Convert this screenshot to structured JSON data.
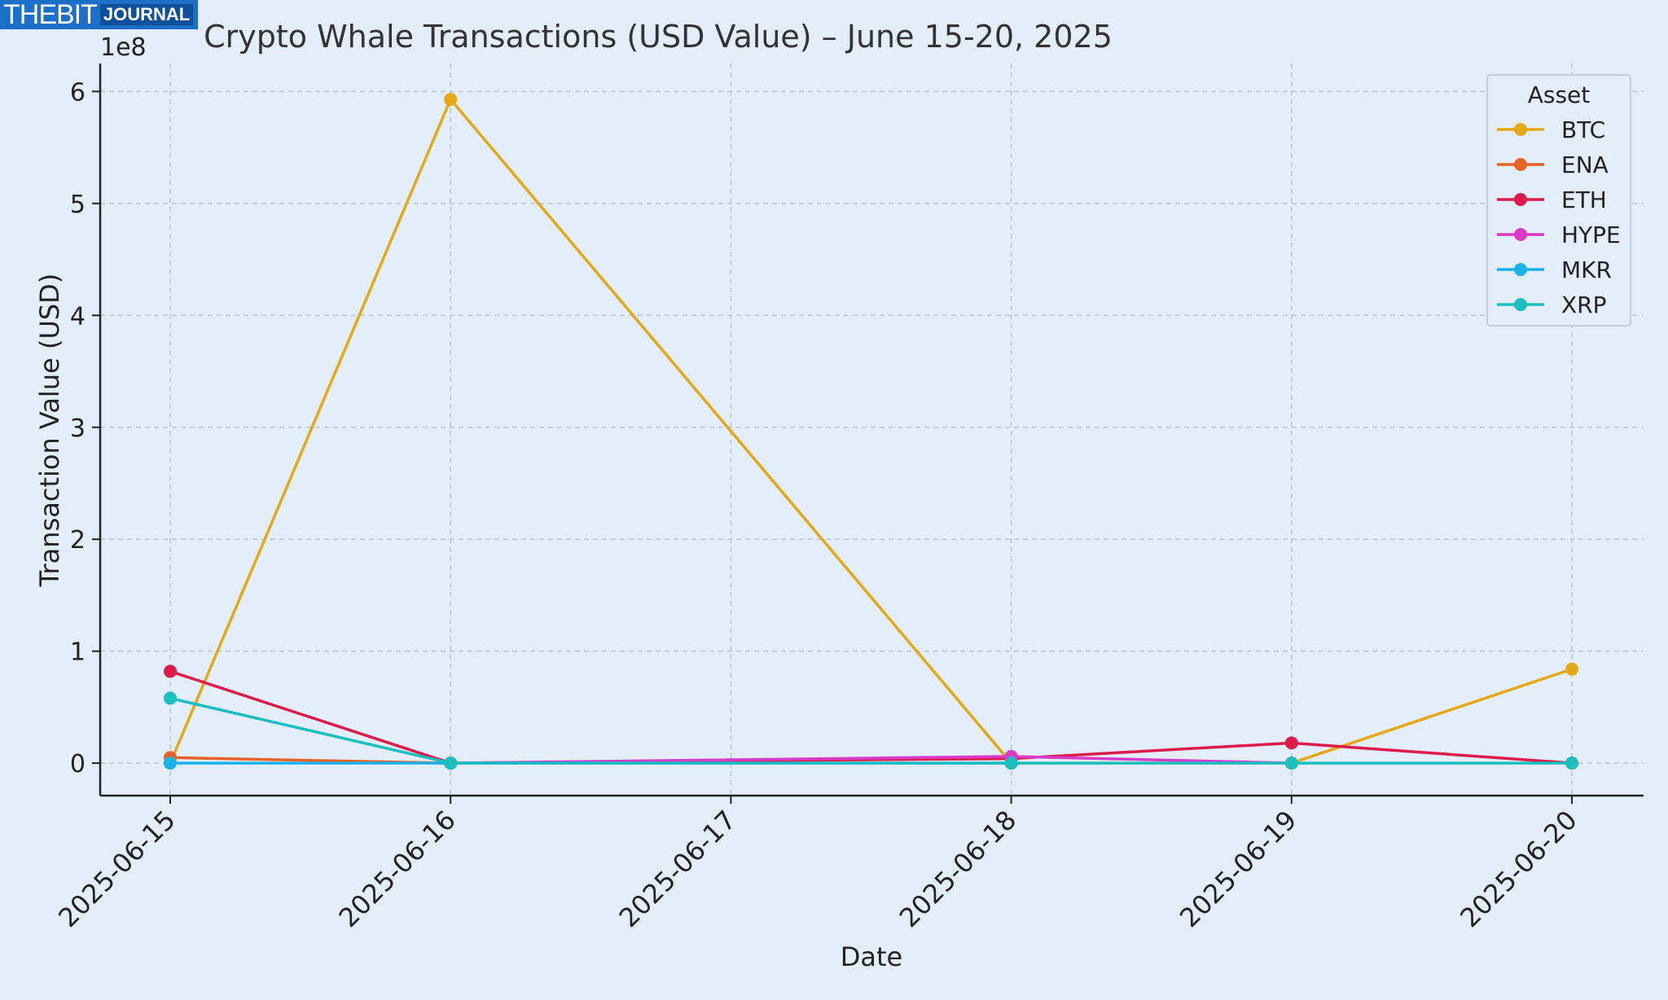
{
  "logo": {
    "part1": "THEBIT",
    "part2": "JOURNAL"
  },
  "chart_data": {
    "type": "line",
    "title": "Crypto Whale Transactions (USD Value) – June 15-20, 2025",
    "xlabel": "Date",
    "ylabel": "Transaction Value (USD)",
    "y_multiplier_label": "1e8",
    "categories": [
      "2025-06-15",
      "2025-06-16",
      "2025-06-17",
      "2025-06-18",
      "2025-06-19",
      "2025-06-20"
    ],
    "yticks": [
      0,
      1,
      2,
      3,
      4,
      5,
      6
    ],
    "ylim": [
      -0.29,
      6.25
    ],
    "grid": true,
    "legend_title": "Asset",
    "legend_position": "top-right",
    "series": [
      {
        "name": "BTC",
        "color": "#e5a817",
        "points": [
          [
            0,
            0.0
          ],
          [
            1,
            5.93
          ],
          [
            3,
            0.0
          ],
          [
            4,
            0.0
          ],
          [
            5,
            0.84
          ]
        ]
      },
      {
        "name": "ENA",
        "color": "#e8632a",
        "points": [
          [
            0,
            0.05
          ],
          [
            1,
            0.0
          ]
        ]
      },
      {
        "name": "ETH",
        "color": "#dc1c4a",
        "points": [
          [
            0,
            0.82
          ],
          [
            1,
            0.0
          ],
          [
            3,
            0.04
          ],
          [
            4,
            0.18
          ],
          [
            5,
            0.0
          ]
        ]
      },
      {
        "name": "HYPE",
        "color": "#d93ac8",
        "points": [
          [
            1,
            0.0
          ],
          [
            3,
            0.06
          ],
          [
            4,
            0.0
          ]
        ]
      },
      {
        "name": "MKR",
        "color": "#1ab2e8",
        "points": [
          [
            0,
            0.0
          ],
          [
            1,
            0.0
          ],
          [
            3,
            0.0
          ]
        ]
      },
      {
        "name": "XRP",
        "color": "#1bbfbf",
        "points": [
          [
            0,
            0.58
          ],
          [
            1,
            0.0
          ],
          [
            3,
            0.0
          ],
          [
            4,
            0.0
          ],
          [
            5,
            0.0
          ]
        ]
      }
    ]
  }
}
